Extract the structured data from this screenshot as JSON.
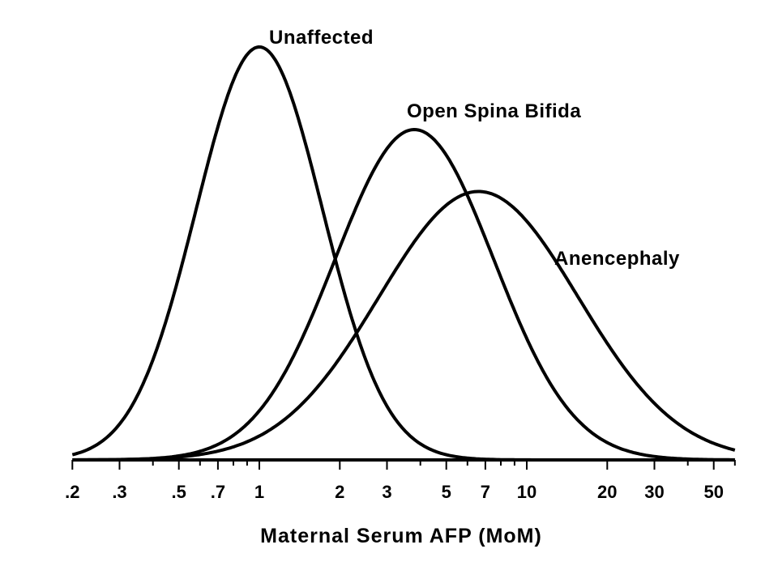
{
  "chart_data": {
    "type": "line",
    "title": "",
    "xlabel": "Maternal Serum AFP (MoM)",
    "ylabel": "",
    "x_scale": "log",
    "xlim": [
      0.2,
      60
    ],
    "x_ticks": [
      0.2,
      0.3,
      0.5,
      0.7,
      1,
      2,
      3,
      5,
      7,
      10,
      20,
      30,
      50
    ],
    "x_tick_labels": [
      ".2",
      ".3",
      ".5",
      ".7",
      "1",
      "2",
      "3",
      "5",
      "7",
      "10",
      "20",
      "30",
      "50"
    ],
    "y_axis_shown": false,
    "grid": false,
    "legend": "none (curves labelled directly)",
    "series": [
      {
        "name": "Unaffected",
        "distribution": "log-normal",
        "median": 1.0,
        "relative_peak_height": 1.0
      },
      {
        "name": "Open Spina Bifida",
        "distribution": "log-normal",
        "median": 3.8,
        "relative_peak_height": 0.8
      },
      {
        "name": "Anencephaly",
        "distribution": "log-normal",
        "median": 6.6,
        "relative_peak_height": 0.65
      }
    ]
  }
}
